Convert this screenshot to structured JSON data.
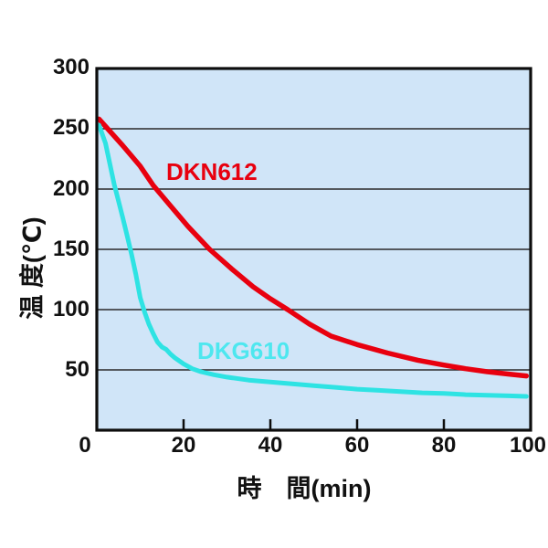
{
  "chart_data": {
    "type": "line",
    "title": "",
    "xlabel": "時　間(min)",
    "ylabel": "温 度(℃)",
    "xlim": [
      0,
      100
    ],
    "ylim": [
      0,
      300
    ],
    "grid": "horizontal-only",
    "legend_position": "inline-labels-on-curves",
    "x_ticks": [
      0,
      20,
      40,
      60,
      80,
      100
    ],
    "x_tick_labels": [
      "0",
      "20",
      "40",
      "60",
      "80",
      "100"
    ],
    "y_ticks": [
      300,
      250,
      200,
      150,
      100,
      50
    ],
    "y_tick_labels": [
      "300",
      "250",
      "200",
      "150",
      "100",
      "50"
    ],
    "grid_y_values": [
      250,
      200,
      150,
      100,
      50
    ],
    "colors": {
      "plot_background": "#d0e5f8",
      "border": "#0d0d0d",
      "gridline": "#2a2a2a",
      "dkn612_line": "#e8000f",
      "dkn612_label": "#e8000f",
      "dkg610_line": "#2ee3e3",
      "dkg610_label": "#4ee7ef"
    },
    "series": [
      {
        "name": "DKN612",
        "points": [
          [
            0.5,
            258
          ],
          [
            3,
            248
          ],
          [
            6,
            236
          ],
          [
            10,
            219
          ],
          [
            13,
            203
          ],
          [
            17,
            186
          ],
          [
            21,
            169
          ],
          [
            26,
            150
          ],
          [
            31,
            134
          ],
          [
            36,
            119
          ],
          [
            40,
            109
          ],
          [
            44,
            100
          ],
          [
            49,
            88
          ],
          [
            54,
            78
          ],
          [
            60,
            71
          ],
          [
            67,
            64
          ],
          [
            74,
            58
          ],
          [
            80,
            54
          ],
          [
            85,
            51
          ],
          [
            90,
            48.5
          ],
          [
            95,
            46.5
          ],
          [
            99,
            45
          ]
        ]
      },
      {
        "name": "DKG610",
        "points": [
          [
            0.5,
            253
          ],
          [
            2,
            238
          ],
          [
            4,
            204
          ],
          [
            5,
            190
          ],
          [
            6,
            176
          ],
          [
            7,
            161
          ],
          [
            8,
            146
          ],
          [
            9,
            129
          ],
          [
            10,
            110
          ],
          [
            11,
            98
          ],
          [
            12,
            88
          ],
          [
            13,
            80
          ],
          [
            14,
            73
          ],
          [
            15,
            69
          ],
          [
            16,
            67
          ],
          [
            17,
            63
          ],
          [
            18,
            60
          ],
          [
            20,
            55
          ],
          [
            22,
            51
          ],
          [
            24,
            48.5
          ],
          [
            27,
            46
          ],
          [
            30,
            44
          ],
          [
            35,
            41.5
          ],
          [
            40,
            40
          ],
          [
            45,
            38.5
          ],
          [
            50,
            37
          ],
          [
            55,
            35.5
          ],
          [
            60,
            34
          ],
          [
            65,
            33
          ],
          [
            70,
            32
          ],
          [
            75,
            31
          ],
          [
            80,
            30.5
          ],
          [
            85,
            29.5
          ],
          [
            90,
            29
          ],
          [
            95,
            28.5
          ],
          [
            99,
            28
          ]
        ]
      }
    ]
  }
}
